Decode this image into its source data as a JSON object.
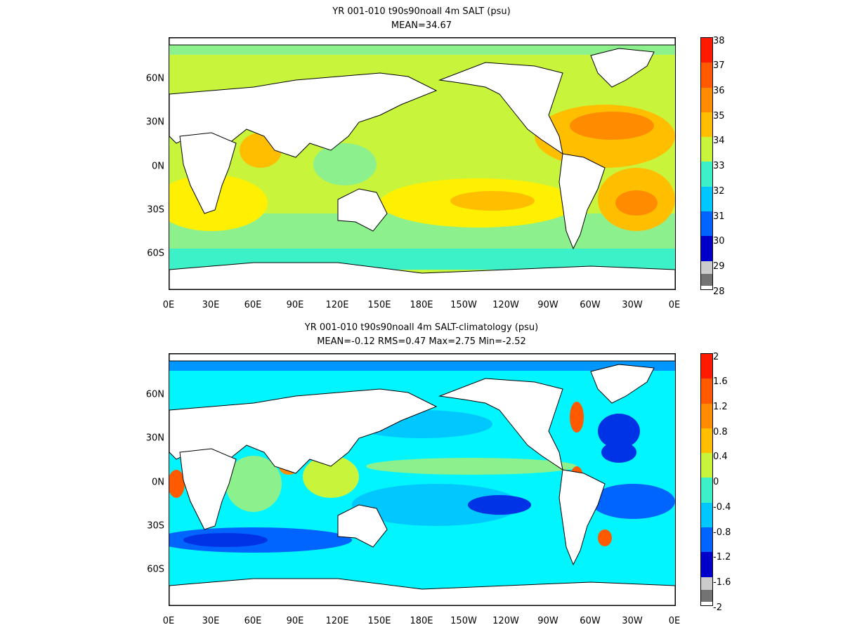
{
  "panels": [
    {
      "title": "YR 001-010 t90s90noall 4m SALT (psu)",
      "subtitle": "MEAN=34.67",
      "colorbar": {
        "labels": [
          "38",
          "37",
          "36",
          "35",
          "34",
          "33",
          "32",
          "31",
          "30",
          "29",
          "28"
        ],
        "colors": [
          "#ff1a00",
          "#ff5a00",
          "#ff8c00",
          "#ffbf00",
          "#ffef00",
          "#c8f53c",
          "#8cf08c",
          "#3cf0c8",
          "#00f5ff",
          "#00c8ff",
          "#0096ff",
          "#0064ff",
          "#0032e6",
          "#0000c8",
          "#00008c",
          "#cccccc",
          "#737373"
        ]
      }
    },
    {
      "title": "YR 001-010 t90s90noall 4m SALT-climatology (psu)",
      "subtitle": "MEAN=-0.12   RMS=0.47   Max=2.75   Min=-2.52",
      "colorbar": {
        "labels": [
          "2",
          "1.6",
          "1.2",
          "0.8",
          "0.4",
          "0",
          "-0.4",
          "-0.8",
          "-1.2",
          "-1.6",
          "-2"
        ],
        "colors": [
          "#ff1a00",
          "#ff5a00",
          "#ff8c00",
          "#ffbf00",
          "#ffef00",
          "#c8f53c",
          "#8cf08c",
          "#3cf0c8",
          "#00f5ff",
          "#00c8ff",
          "#0096ff",
          "#0064ff",
          "#0032e6",
          "#0000c8",
          "#00008c",
          "#cccccc",
          "#737373"
        ]
      }
    }
  ],
  "xticks": [
    "0E",
    "30E",
    "60E",
    "90E",
    "120E",
    "150E",
    "180E",
    "150W",
    "120W",
    "90W",
    "60W",
    "30W",
    "0E"
  ],
  "yticks": [
    "60N",
    "30N",
    "0N",
    "30S",
    "60S"
  ],
  "colors": {
    "land": "#ffffff",
    "ocean_top_base": "#8cf08c",
    "ocean_bottom_base": "#00f5ff"
  }
}
